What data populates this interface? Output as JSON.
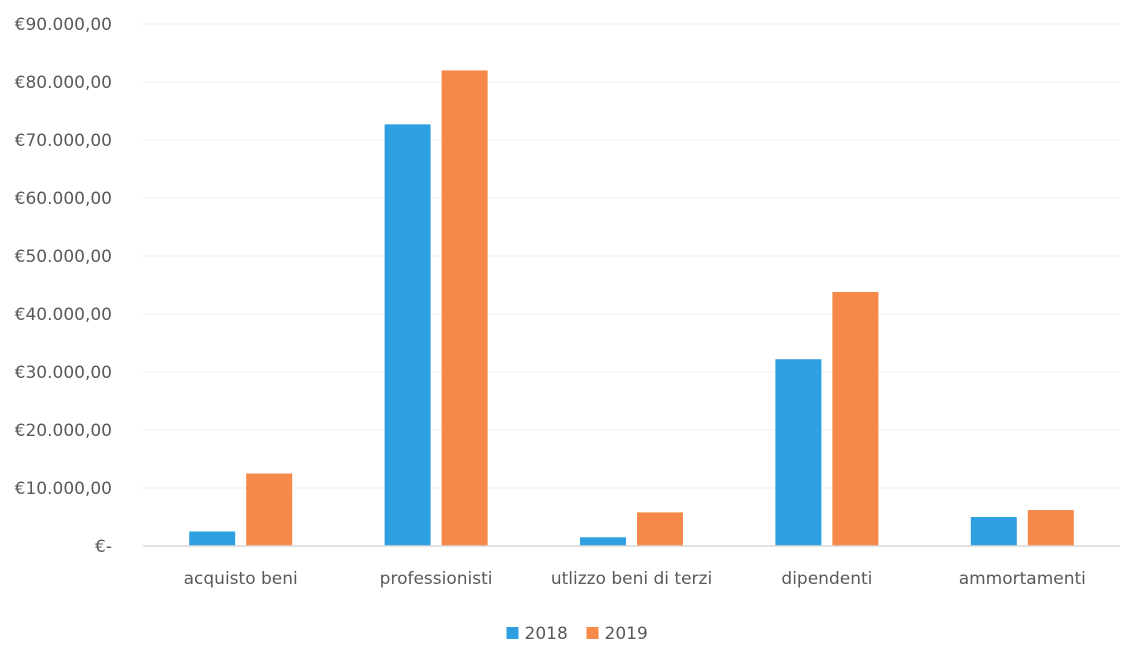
{
  "chart_data": {
    "type": "bar",
    "categories": [
      "acquisto beni",
      "professionisti",
      "utlizzo beni di terzi",
      "dipendenti",
      "ammortamenti"
    ],
    "series": [
      {
        "name": "2018",
        "color": "#2e9fe0",
        "values": [
          2500,
          72700,
          1500,
          32200,
          5000
        ]
      },
      {
        "name": "2019",
        "color": "#f5894a",
        "values": [
          12500,
          82000,
          5800,
          43800,
          6200
        ]
      }
    ],
    "y_ticks": [
      {
        "value": 0,
        "label": "€-"
      },
      {
        "value": 10000,
        "label": "€10.000,00"
      },
      {
        "value": 20000,
        "label": "€20.000,00"
      },
      {
        "value": 30000,
        "label": "€30.000,00"
      },
      {
        "value": 40000,
        "label": "€40.000,00"
      },
      {
        "value": 50000,
        "label": "€50.000,00"
      },
      {
        "value": 60000,
        "label": "€60.000,00"
      },
      {
        "value": 70000,
        "label": "€70.000,00"
      },
      {
        "value": 80000,
        "label": "€80.000,00"
      },
      {
        "value": 90000,
        "label": "€90.000,00"
      }
    ],
    "ylim": [
      0,
      90000
    ],
    "title": "",
    "xlabel": "",
    "ylabel": "",
    "grid": true,
    "legend": "bottom-center"
  }
}
